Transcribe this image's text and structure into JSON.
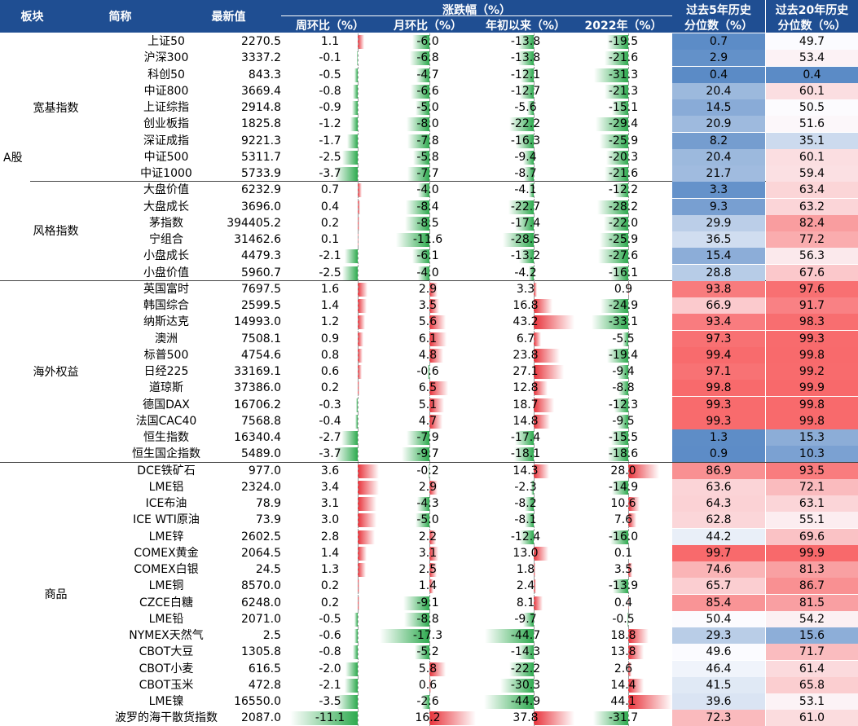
{
  "header": {
    "sector": "板块",
    "name": "简称",
    "latest": "最新值",
    "change_group": "涨跌幅（%）",
    "weekly": "周环比（%）",
    "monthly": "月环比（%）",
    "ytd": "年初以来（%）",
    "y2022": "2022年（%）",
    "pct5_line1": "过去5年历史",
    "pct5_line2": "分位数（%）",
    "pct20_line1": "过去20年历史",
    "pct20_line2": "分位数（%）"
  },
  "categories": {
    "a_share": "A股",
    "broad": "宽基指数",
    "style": "风格指数",
    "overseas": "海外权益",
    "commodity": "商品"
  },
  "colors": {
    "header_bg": "#1f4e92",
    "positive_bar": "#e8323a",
    "negative_bar": "#2eaa4f",
    "high_pct": "#f8696b",
    "mid_pct": "#fcfcff",
    "low_pct": "#5a8ac6"
  },
  "rows": [
    {
      "name": "上证50",
      "latest": "2270.5",
      "weekly": "1.1",
      "monthly": "-6.0",
      "ytd": "-13.8",
      "y2022": "-19.5",
      "p5": "0.7",
      "p20": "49.7"
    },
    {
      "name": "沪深300",
      "latest": "3337.2",
      "weekly": "-0.1",
      "monthly": "-6.8",
      "ytd": "-13.8",
      "y2022": "-21.6",
      "p5": "2.9",
      "p20": "53.4"
    },
    {
      "name": "科创50",
      "latest": "843.3",
      "weekly": "-0.5",
      "monthly": "-4.7",
      "ytd": "-12.1",
      "y2022": "-31.3",
      "p5": "0.4",
      "p20": "0.4"
    },
    {
      "name": "中证800",
      "latest": "3669.4",
      "weekly": "-0.8",
      "monthly": "-6.6",
      "ytd": "-12.7",
      "y2022": "-21.3",
      "p5": "20.4",
      "p20": "60.1"
    },
    {
      "name": "上证综指",
      "latest": "2914.8",
      "weekly": "-0.9",
      "monthly": "-5.0",
      "ytd": "-5.6",
      "y2022": "-15.1",
      "p5": "14.5",
      "p20": "50.5"
    },
    {
      "name": "创业板指",
      "latest": "1825.8",
      "weekly": "-1.2",
      "monthly": "-8.0",
      "ytd": "-22.2",
      "y2022": "-29.4",
      "p5": "20.9",
      "p20": "51.6"
    },
    {
      "name": "深证成指",
      "latest": "9221.3",
      "weekly": "-1.7",
      "monthly": "-7.8",
      "ytd": "-16.3",
      "y2022": "-25.9",
      "p5": "8.2",
      "p20": "35.1"
    },
    {
      "name": "中证500",
      "latest": "5311.7",
      "weekly": "-2.5",
      "monthly": "-5.8",
      "ytd": "-9.4",
      "y2022": "-20.3",
      "p5": "20.4",
      "p20": "60.1"
    },
    {
      "name": "中证1000",
      "latest": "5733.9",
      "weekly": "-3.7",
      "monthly": "-7.7",
      "ytd": "-8.7",
      "y2022": "-21.6",
      "p5": "21.7",
      "p20": "59.4"
    },
    {
      "name": "大盘价值",
      "latest": "6232.9",
      "weekly": "0.7",
      "monthly": "-4.0",
      "ytd": "-4.1",
      "y2022": "-12.2",
      "p5": "3.3",
      "p20": "63.4"
    },
    {
      "name": "大盘成长",
      "latest": "3696.0",
      "weekly": "0.4",
      "monthly": "-8.4",
      "ytd": "-22.7",
      "y2022": "-28.2",
      "p5": "9.3",
      "p20": "63.2"
    },
    {
      "name": "茅指数",
      "latest": "394405.2",
      "weekly": "0.2",
      "monthly": "-8.5",
      "ytd": "-17.4",
      "y2022": "-22.0",
      "p5": "29.9",
      "p20": "82.4"
    },
    {
      "name": "宁组合",
      "latest": "31462.6",
      "weekly": "0.1",
      "monthly": "-11.6",
      "ytd": "-28.5",
      "y2022": "-25.9",
      "p5": "36.5",
      "p20": "77.2"
    },
    {
      "name": "小盘成长",
      "latest": "4479.3",
      "weekly": "-2.1",
      "monthly": "-6.1",
      "ytd": "-13.2",
      "y2022": "-27.6",
      "p5": "15.4",
      "p20": "56.3"
    },
    {
      "name": "小盘价值",
      "latest": "5960.7",
      "weekly": "-2.5",
      "monthly": "-4.0",
      "ytd": "-4.2",
      "y2022": "-16.1",
      "p5": "28.8",
      "p20": "67.6"
    },
    {
      "name": "英国富时",
      "latest": "7697.5",
      "weekly": "1.6",
      "monthly": "2.9",
      "ytd": "3.3",
      "y2022": "0.9",
      "p5": "93.8",
      "p20": "97.6"
    },
    {
      "name": "韩国综合",
      "latest": "2599.5",
      "weekly": "1.4",
      "monthly": "3.5",
      "ytd": "16.8",
      "y2022": "-24.9",
      "p5": "66.9",
      "p20": "91.7"
    },
    {
      "name": "纳斯达克",
      "latest": "14993.0",
      "weekly": "1.2",
      "monthly": "5.6",
      "ytd": "43.2",
      "y2022": "-33.1",
      "p5": "93.4",
      "p20": "98.3"
    },
    {
      "name": "澳洲",
      "latest": "7508.1",
      "weekly": "0.9",
      "monthly": "6.1",
      "ytd": "6.7",
      "y2022": "-5.5",
      "p5": "97.3",
      "p20": "99.3"
    },
    {
      "name": "标普500",
      "latest": "4754.6",
      "weekly": "0.8",
      "monthly": "4.8",
      "ytd": "23.8",
      "y2022": "-19.4",
      "p5": "99.4",
      "p20": "99.8"
    },
    {
      "name": "日经225",
      "latest": "33169.1",
      "weekly": "0.6",
      "monthly": "-0.6",
      "ytd": "27.1",
      "y2022": "-9.4",
      "p5": "97.1",
      "p20": "99.2"
    },
    {
      "name": "道琼斯",
      "latest": "37386.0",
      "weekly": "0.2",
      "monthly": "6.5",
      "ytd": "12.8",
      "y2022": "-8.8",
      "p5": "99.8",
      "p20": "99.9"
    },
    {
      "name": "德国DAX",
      "latest": "16706.2",
      "weekly": "-0.3",
      "monthly": "5.1",
      "ytd": "18.7",
      "y2022": "-12.3",
      "p5": "99.3",
      "p20": "99.8"
    },
    {
      "name": "法国CAC40",
      "latest": "7568.8",
      "weekly": "-0.4",
      "monthly": "4.7",
      "ytd": "14.8",
      "y2022": "-9.5",
      "p5": "99.3",
      "p20": "99.8"
    },
    {
      "name": "恒生指数",
      "latest": "16340.4",
      "weekly": "-2.7",
      "monthly": "-7.9",
      "ytd": "-17.4",
      "y2022": "-15.5",
      "p5": "1.3",
      "p20": "15.3"
    },
    {
      "name": "恒生国企指数",
      "latest": "5489.0",
      "weekly": "-3.7",
      "monthly": "-9.7",
      "ytd": "-18.1",
      "y2022": "-18.6",
      "p5": "0.9",
      "p20": "10.3"
    },
    {
      "name": "DCE铁矿石",
      "latest": "977.0",
      "weekly": "3.6",
      "monthly": "-0.2",
      "ytd": "14.3",
      "y2022": "28.0",
      "p5": "86.9",
      "p20": "93.5"
    },
    {
      "name": "LME铝",
      "latest": "2324.0",
      "weekly": "3.4",
      "monthly": "2.9",
      "ytd": "-2.3",
      "y2022": "-14.9",
      "p5": "63.6",
      "p20": "72.1"
    },
    {
      "name": "ICE布油",
      "latest": "78.9",
      "weekly": "3.1",
      "monthly": "-4.3",
      "ytd": "-8.2",
      "y2022": "10.6",
      "p5": "64.3",
      "p20": "63.1"
    },
    {
      "name": "ICE WTI原油",
      "latest": "73.9",
      "weekly": "3.0",
      "monthly": "-5.0",
      "ytd": "-8.1",
      "y2022": "7.6",
      "p5": "62.8",
      "p20": "55.1"
    },
    {
      "name": "LME锌",
      "latest": "2602.5",
      "weekly": "2.8",
      "monthly": "2.2",
      "ytd": "-12.4",
      "y2022": "-16.0",
      "p5": "44.2",
      "p20": "69.6"
    },
    {
      "name": "COMEX黄金",
      "latest": "2064.5",
      "weekly": "1.4",
      "monthly": "3.1",
      "ytd": "13.0",
      "y2022": "0.1",
      "p5": "99.7",
      "p20": "99.9"
    },
    {
      "name": "COMEX白银",
      "latest": "24.5",
      "weekly": "1.3",
      "monthly": "2.5",
      "ytd": "1.8",
      "y2022": "3.5",
      "p5": "74.6",
      "p20": "81.3"
    },
    {
      "name": "LME铜",
      "latest": "8570.0",
      "weekly": "0.2",
      "monthly": "1.4",
      "ytd": "2.4",
      "y2022": "-13.9",
      "p5": "65.7",
      "p20": "86.7"
    },
    {
      "name": "CZCE白糖",
      "latest": "6248.0",
      "weekly": "0.2",
      "monthly": "-9.1",
      "ytd": "8.1",
      "y2022": "0.4",
      "p5": "85.4",
      "p20": "81.5"
    },
    {
      "name": "LME铅",
      "latest": "2071.0",
      "weekly": "-0.5",
      "monthly": "-8.8",
      "ytd": "-9.7",
      "y2022": "-0.5",
      "p5": "50.4",
      "p20": "54.2"
    },
    {
      "name": "NYMEX天然气",
      "latest": "2.5",
      "weekly": "-0.6",
      "monthly": "-17.3",
      "ytd": "-44.7",
      "y2022": "18.8",
      "p5": "29.3",
      "p20": "15.6"
    },
    {
      "name": "CBOT大豆",
      "latest": "1305.8",
      "weekly": "-0.8",
      "monthly": "-5.2",
      "ytd": "-14.3",
      "y2022": "13.8",
      "p5": "49.6",
      "p20": "71.7"
    },
    {
      "name": "CBOT小麦",
      "latest": "616.5",
      "weekly": "-2.0",
      "monthly": "5.8",
      "ytd": "-22.2",
      "y2022": "2.6",
      "p5": "46.4",
      "p20": "61.4"
    },
    {
      "name": "CBOT玉米",
      "latest": "472.8",
      "weekly": "-2.1",
      "monthly": "0.6",
      "ytd": "-30.3",
      "y2022": "14.4",
      "p5": "41.5",
      "p20": "65.8"
    },
    {
      "name": "LME镍",
      "latest": "16550.0",
      "weekly": "-3.5",
      "monthly": "-2.6",
      "ytd": "-44.9",
      "y2022": "44.1",
      "p5": "39.6",
      "p20": "53.1"
    },
    {
      "name": "波罗的海干散货指数",
      "latest": "2087.0",
      "weekly": "-11.1",
      "monthly": "16.2",
      "ytd": "37.8",
      "y2022": "-31.7",
      "p5": "72.3",
      "p20": "61.0"
    }
  ]
}
